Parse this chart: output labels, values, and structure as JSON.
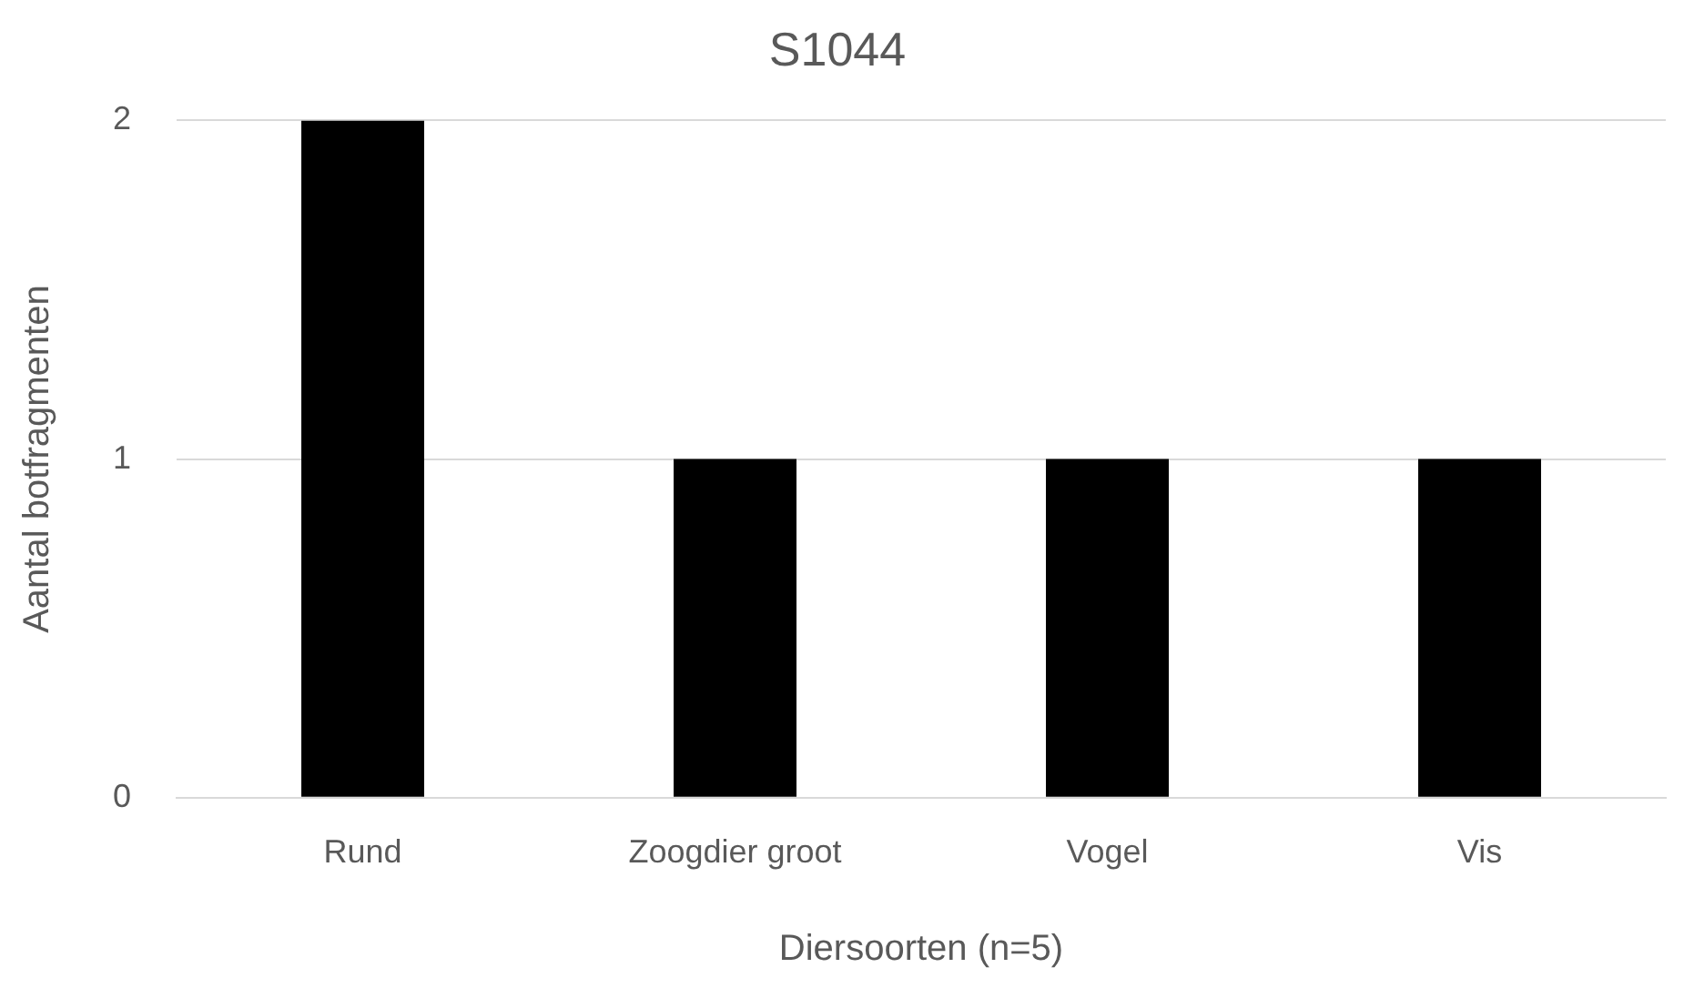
{
  "chart_data": {
    "type": "bar",
    "title": "S1044",
    "xlabel": "Diersoorten (n=5)",
    "ylabel": "Aantal botfragmenten",
    "categories": [
      "Rund",
      "Zoogdier groot",
      "Vogel",
      "Vis"
    ],
    "values": [
      2,
      1,
      1,
      1
    ],
    "color": "#000000",
    "ylim": [
      0,
      2
    ],
    "yticks": [
      0,
      1,
      2
    ],
    "grid": "y",
    "legend": false
  }
}
